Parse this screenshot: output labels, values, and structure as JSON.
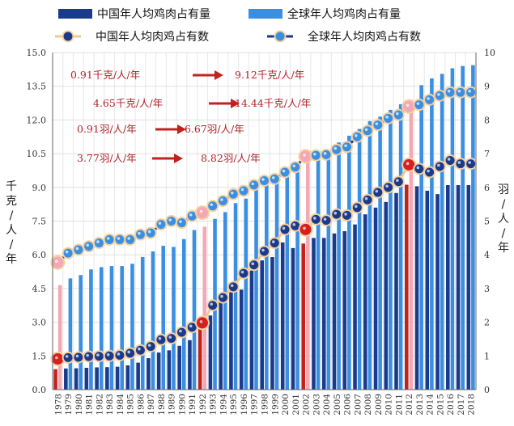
{
  "chart_data": {
    "type": "bar+line",
    "x": [
      "1978",
      "1979",
      "1980",
      "1981",
      "1982",
      "1983",
      "1984",
      "1985",
      "1986",
      "1987",
      "1988",
      "1989",
      "1990",
      "1991",
      "1992",
      "1993",
      "1994",
      "1995",
      "1996",
      "1997",
      "1998",
      "1999",
      "2000",
      "2001",
      "2002",
      "2003",
      "2004",
      "2005",
      "2006",
      "2007",
      "2008",
      "2009",
      "2010",
      "2011",
      "2012",
      "2013",
      "2014",
      "2015",
      "2016",
      "2017",
      "2018"
    ],
    "y_left": {
      "label": "千克/人/年",
      "range": [
        0,
        15
      ],
      "ticks": [
        "0.0",
        "1.5",
        "3.0",
        "4.5",
        "6.0",
        "7.5",
        "9.0",
        "10.5",
        "12.0",
        "13.5",
        "15.0"
      ]
    },
    "y_right": {
      "label": "羽/人/年",
      "range": [
        0,
        10
      ],
      "ticks": [
        "0",
        "1",
        "2",
        "3",
        "4",
        "5",
        "6",
        "7",
        "8",
        "9",
        "10"
      ]
    },
    "series": [
      {
        "name": "中国年人均鸡肉占有量",
        "kind": "bar",
        "axis": "left",
        "color": "#1a3a8c",
        "highlight_color": "#c0231e",
        "highlight_years": [
          "1978",
          "1992",
          "2002",
          "2012"
        ],
        "values": [
          0.91,
          0.94,
          0.95,
          0.97,
          0.99,
          1.0,
          1.02,
          1.08,
          1.2,
          1.4,
          1.65,
          1.75,
          1.95,
          2.2,
          2.95,
          3.3,
          3.95,
          4.35,
          4.45,
          5.3,
          5.75,
          5.9,
          6.55,
          6.3,
          6.5,
          6.75,
          6.75,
          6.95,
          7.05,
          7.35,
          7.8,
          8.1,
          8.35,
          8.75,
          9.12,
          9.05,
          8.85,
          8.7,
          9.1,
          9.1,
          9.1
        ]
      },
      {
        "name": "全球年人均鸡肉占有量",
        "kind": "bar",
        "axis": "left",
        "color": "#3a8fe0",
        "highlight_color": "#f4a8b4",
        "highlight_years": [
          "1978",
          "1992",
          "2002",
          "2012"
        ],
        "values": [
          4.65,
          4.95,
          5.1,
          5.35,
          5.45,
          5.5,
          5.5,
          5.6,
          5.9,
          6.15,
          6.4,
          6.35,
          6.7,
          7.1,
          7.25,
          7.6,
          7.9,
          8.3,
          8.5,
          8.9,
          9.15,
          9.4,
          9.6,
          9.85,
          10.2,
          10.55,
          10.6,
          11.0,
          11.3,
          11.6,
          11.95,
          12.15,
          12.45,
          12.7,
          12.9,
          13.55,
          13.85,
          14.05,
          14.3,
          14.4,
          14.44
        ]
      },
      {
        "name": "中国年人均肉鸡占有数",
        "kind": "line",
        "axis": "right",
        "color": "#f3c98a",
        "marker": "#1a3a8c",
        "highlight_marker": "#d62020",
        "highlight_years": [
          "1978",
          "1992",
          "2002",
          "2012"
        ],
        "values": [
          0.91,
          0.95,
          0.96,
          0.98,
          0.99,
          1.0,
          1.02,
          1.08,
          1.17,
          1.28,
          1.48,
          1.52,
          1.7,
          1.85,
          1.98,
          2.5,
          2.73,
          3.05,
          3.45,
          3.7,
          4.1,
          4.35,
          4.75,
          4.86,
          4.75,
          5.05,
          5.02,
          5.2,
          5.17,
          5.4,
          5.63,
          5.85,
          6.0,
          6.17,
          6.67,
          6.55,
          6.45,
          6.62,
          6.8,
          6.7,
          6.7
        ]
      },
      {
        "name": "全球年人均肉鸡占有数",
        "kind": "line",
        "axis": "right",
        "color": "#1a3a8c",
        "marker": "#3a8fe0",
        "highlight_marker": "#f4a8b4",
        "highlight_years": [
          "1978",
          "1992",
          "2002",
          "2012"
        ],
        "values": [
          3.77,
          4.05,
          4.15,
          4.25,
          4.35,
          4.45,
          4.45,
          4.45,
          4.6,
          4.65,
          4.9,
          5.0,
          4.95,
          5.15,
          5.25,
          5.45,
          5.6,
          5.8,
          5.9,
          6.07,
          6.2,
          6.25,
          6.45,
          6.6,
          6.92,
          6.95,
          6.97,
          7.12,
          7.2,
          7.5,
          7.68,
          7.85,
          8.05,
          8.15,
          8.4,
          8.45,
          8.6,
          8.72,
          8.82,
          8.82,
          8.82
        ]
      }
    ],
    "annotations": [
      {
        "from": "0.91千克/人/年",
        "to": "9.12千克/人/年"
      },
      {
        "from": "4.65千克/人/年",
        "to": "14.44千克/人/年"
      },
      {
        "from": "0.91羽/人/年",
        "to": "6.67羽/人/年"
      },
      {
        "from": "3.77羽/人/年",
        "to": "8.82羽/人/年"
      }
    ],
    "legend_position": "top",
    "grid": true
  }
}
